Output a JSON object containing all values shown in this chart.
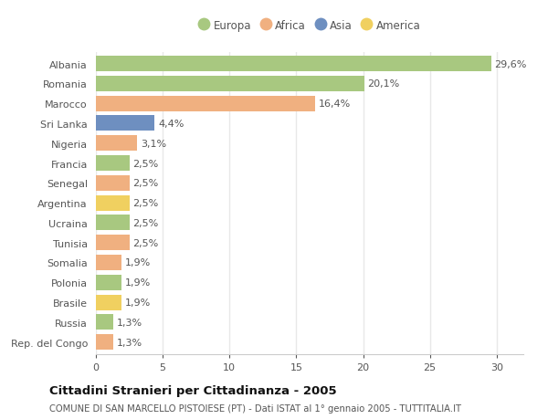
{
  "countries": [
    "Albania",
    "Romania",
    "Marocco",
    "Sri Lanka",
    "Nigeria",
    "Francia",
    "Senegal",
    "Argentina",
    "Ucraina",
    "Tunisia",
    "Somalia",
    "Polonia",
    "Brasile",
    "Russia",
    "Rep. del Congo"
  ],
  "values": [
    29.6,
    20.1,
    16.4,
    4.4,
    3.1,
    2.5,
    2.5,
    2.5,
    2.5,
    2.5,
    1.9,
    1.9,
    1.9,
    1.3,
    1.3
  ],
  "labels": [
    "29,6%",
    "20,1%",
    "16,4%",
    "4,4%",
    "3,1%",
    "2,5%",
    "2,5%",
    "2,5%",
    "2,5%",
    "2,5%",
    "1,9%",
    "1,9%",
    "1,9%",
    "1,3%",
    "1,3%"
  ],
  "colors": [
    "#a8c880",
    "#a8c880",
    "#f0b080",
    "#6e8fc0",
    "#f0b080",
    "#a8c880",
    "#f0b080",
    "#f0d060",
    "#a8c880",
    "#f0b080",
    "#f0b080",
    "#a8c880",
    "#f0d060",
    "#a8c880",
    "#f0b080"
  ],
  "continent_colors": {
    "Europa": "#a8c880",
    "Africa": "#f0b080",
    "Asia": "#6e8fc0",
    "America": "#f0d060"
  },
  "legend_labels": [
    "Europa",
    "Africa",
    "Asia",
    "America"
  ],
  "title": "Cittadini Stranieri per Cittadinanza - 2005",
  "subtitle": "COMUNE DI SAN MARCELLO PISTOIESE (PT) - Dati ISTAT al 1° gennaio 2005 - TUTTITALIA.IT",
  "xlim": [
    0,
    32
  ],
  "xticks": [
    0,
    5,
    10,
    15,
    20,
    25,
    30
  ],
  "background_color": "#ffffff",
  "plot_bg_color": "#ffffff",
  "grid_color": "#e8e8e8",
  "bar_height": 0.78,
  "text_color": "#555555",
  "title_color": "#111111",
  "label_fontsize": 8,
  "ytick_fontsize": 8,
  "xtick_fontsize": 8,
  "legend_fontsize": 8.5
}
